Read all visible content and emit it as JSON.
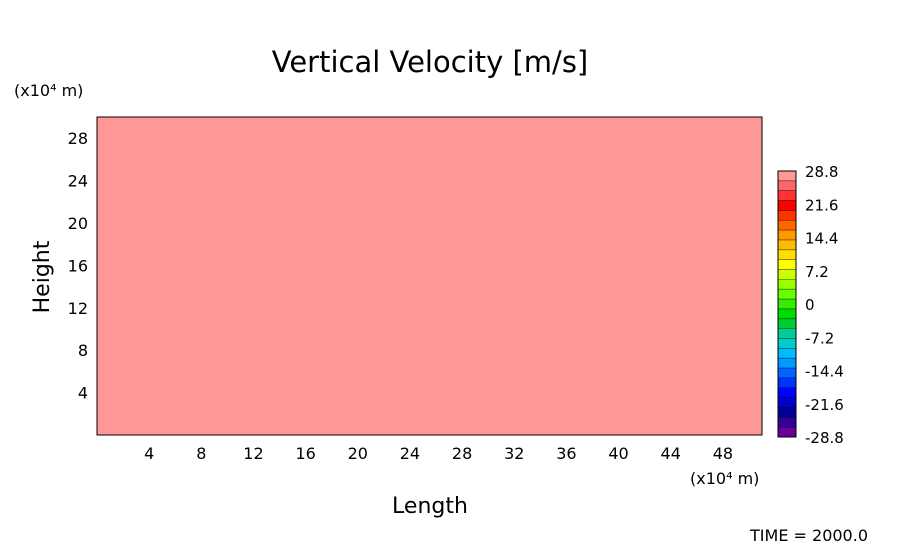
{
  "chart_data": {
    "type": "heatmap",
    "title": "Vertical Velocity [m/s]",
    "xlabel": "Length",
    "ylabel": "Height",
    "x_unit_label": "(x10⁴ m)",
    "y_unit_label": "(x10⁴ m)",
    "xlim": [
      0,
      51
    ],
    "ylim": [
      0,
      30
    ],
    "x_ticks": [
      4,
      8,
      12,
      16,
      20,
      24,
      28,
      32,
      36,
      40,
      44,
      48
    ],
    "y_ticks": [
      4,
      8,
      12,
      16,
      20,
      24,
      28
    ],
    "field_value": 28.8,
    "field_color": "#ff9999",
    "colorbar": {
      "min": -28.8,
      "max": 28.8,
      "tick_labels": [
        "28.8",
        "21.6",
        "14.4",
        "7.2",
        "0",
        "-7.2",
        "-14.4",
        "-21.6",
        "-28.8"
      ],
      "tick_values": [
        28.8,
        21.6,
        14.4,
        7.2,
        0,
        -7.2,
        -14.4,
        -21.6,
        -28.8
      ],
      "colors_top_to_bottom": [
        "#ff9999",
        "#ff6666",
        "#ff3333",
        "#ff0000",
        "#ff3300",
        "#ff6600",
        "#ff9900",
        "#ffbb00",
        "#ffdd00",
        "#ffff00",
        "#ccff00",
        "#99ff00",
        "#66ff00",
        "#33ee00",
        "#00dd00",
        "#00cc33",
        "#00cc99",
        "#00cccc",
        "#00bbff",
        "#0099ff",
        "#0066ff",
        "#0033ff",
        "#0000ff",
        "#0000cc",
        "#000099",
        "#330099",
        "#660099"
      ]
    },
    "annotation": "TIME = 2000.0"
  }
}
